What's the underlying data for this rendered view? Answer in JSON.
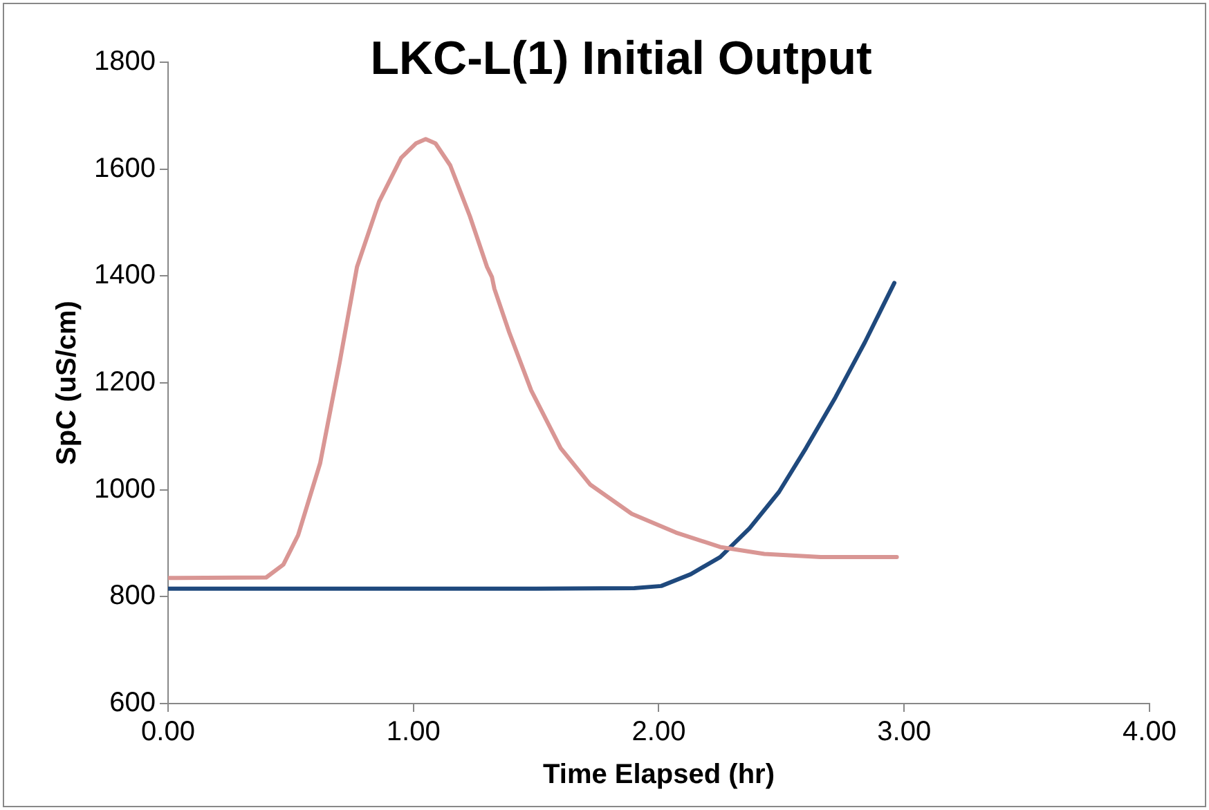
{
  "chart_data": {
    "type": "line",
    "title": "LKC-L(1) Initial Output",
    "xlabel": "Time Elapsed (hr)",
    "ylabel": "SpC (uS/cm)",
    "xlim": [
      0,
      4
    ],
    "xticks": [
      {
        "value": 0,
        "label": "0.00"
      },
      {
        "value": 1,
        "label": "1.00"
      },
      {
        "value": 2,
        "label": "2.00"
      },
      {
        "value": 3,
        "label": "3.00"
      },
      {
        "value": 4,
        "label": "4.00"
      }
    ],
    "ylim": [
      600,
      1800
    ],
    "yticks": [
      600,
      800,
      1000,
      1200,
      1400,
      1600,
      1800
    ],
    "grid": false,
    "legend": false,
    "marker": "none",
    "line_style": "solid",
    "series": [
      {
        "color": "#d99694",
        "x": [
          0,
          0.4,
          0.47,
          0.53,
          0.62,
          0.7,
          0.77,
          0.86,
          0.95,
          1.01,
          1.05,
          1.09,
          1.15,
          1.23,
          1.3,
          1.32,
          1.33,
          1.39,
          1.48,
          1.6,
          1.72,
          1.89,
          2.07,
          2.25,
          2.43,
          2.66,
          2.97
        ],
        "values": [
          835,
          836,
          860,
          915,
          1050,
          1240,
          1417,
          1539,
          1621,
          1648,
          1656,
          1648,
          1607,
          1512,
          1417,
          1398,
          1376,
          1295,
          1186,
          1078,
          1010,
          955,
          920,
          893,
          880,
          874,
          874
        ]
      },
      {
        "color": "#1f497d",
        "x": [
          0,
          0.5,
          1,
          1.5,
          1.9,
          2.01,
          2.13,
          2.25,
          2.37,
          2.49,
          2.6,
          2.72,
          2.84,
          2.96
        ],
        "values": [
          815,
          815,
          815,
          815,
          816,
          820,
          842,
          874,
          928,
          996,
          1078,
          1173,
          1276,
          1387
        ]
      }
    ]
  }
}
